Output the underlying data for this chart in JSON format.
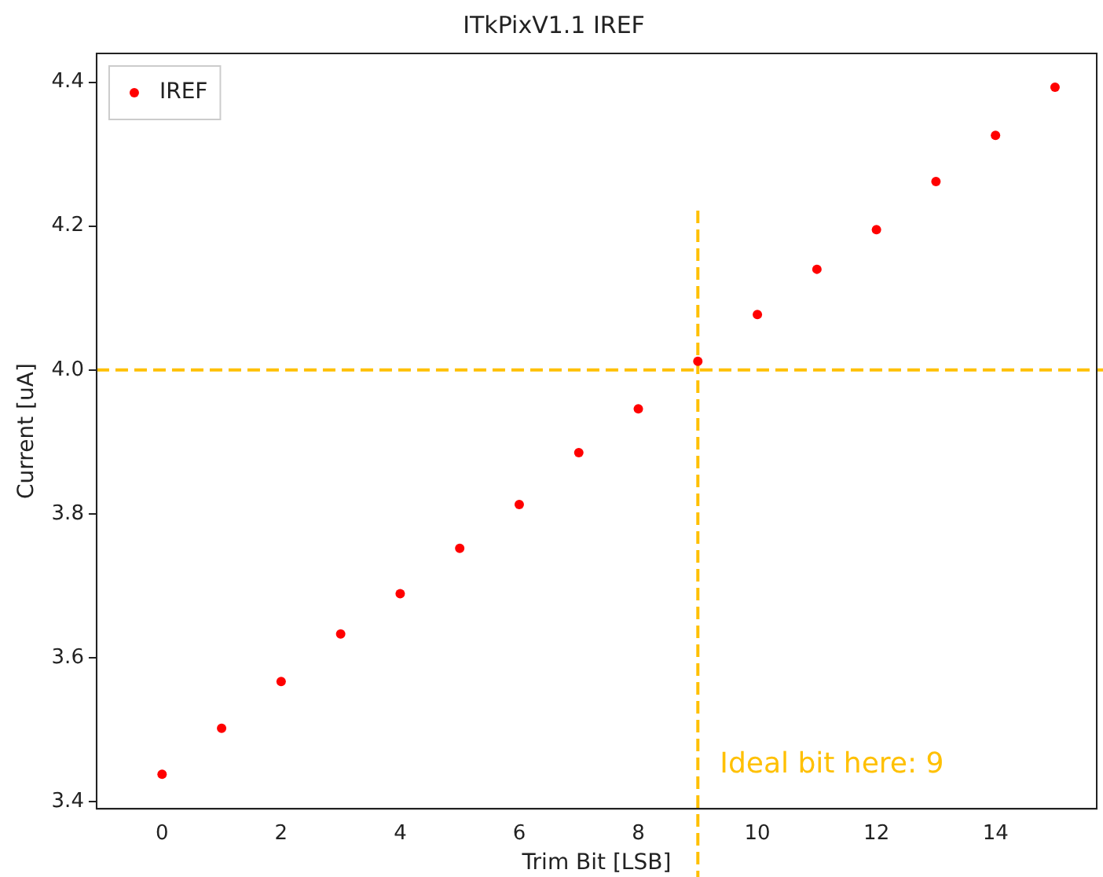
{
  "chart_data": {
    "type": "scatter",
    "title": "ITkPixV1.1 IREF",
    "xlabel": "Trim Bit [LSB]",
    "ylabel": "Current [uA]",
    "x": [
      0,
      1,
      2,
      3,
      4,
      5,
      6,
      7,
      8,
      9,
      10,
      11,
      12,
      13,
      14,
      15
    ],
    "series": [
      {
        "name": "IREF",
        "color": "#ff0000",
        "values": [
          3.438,
          3.502,
          3.567,
          3.633,
          3.689,
          3.752,
          3.813,
          3.885,
          3.946,
          4.012,
          4.077,
          4.14,
          4.195,
          4.262,
          4.326,
          4.393
        ]
      }
    ],
    "xlim": [
      -1.1,
      15.7
    ],
    "xticks": [
      0,
      2,
      4,
      6,
      8,
      10,
      12,
      14
    ],
    "ylim": [
      3.39,
      4.44
    ],
    "yticks": [
      3.4,
      3.6,
      3.8,
      {
        "value": 4,
        "label": "4.0"
      },
      4.2,
      4.4
    ],
    "ref_lines": [
      {
        "axis": "y",
        "value": 4.0,
        "color": "#ffc000",
        "line_style": "dashed"
      },
      {
        "axis": "x",
        "value": 9,
        "color": "#ffc000",
        "line_style": "dashed"
      }
    ],
    "annotations": [
      "Ideal bit here: 9"
    ],
    "legend": "top left",
    "grid": false,
    "marker": "circle"
  }
}
